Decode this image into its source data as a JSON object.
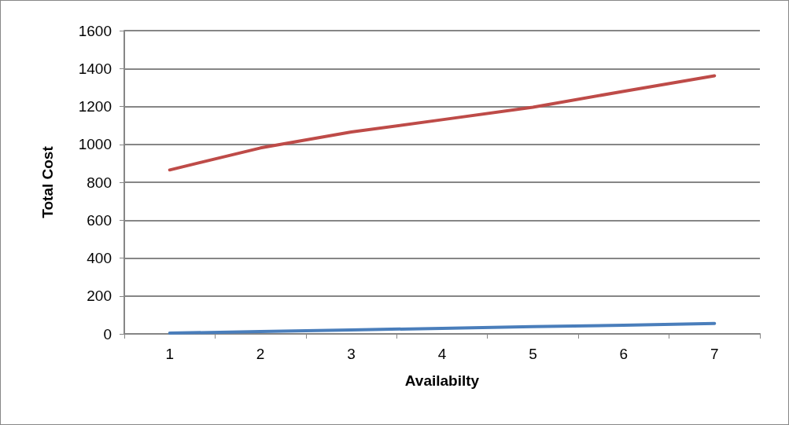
{
  "chart_data": {
    "type": "line",
    "xlabel": "Availabilty",
    "ylabel": "Total Cost",
    "categories": [
      "1",
      "2",
      "3",
      "4",
      "5",
      "6",
      "7"
    ],
    "series": [
      {
        "color": "#4a7ebb",
        "values": [
          4,
          12,
          21,
          29,
          38,
          46,
          55
        ]
      },
      {
        "color": "#be4b48",
        "values": [
          865,
          981,
          1065,
          1130,
          1196,
          1280,
          1362
        ]
      }
    ],
    "ylim": [
      0,
      1600
    ],
    "yticks": [
      0,
      200,
      400,
      600,
      800,
      1000,
      1200,
      1400,
      1600
    ],
    "grid": "y",
    "marker": "none",
    "line_style": "solid"
  }
}
